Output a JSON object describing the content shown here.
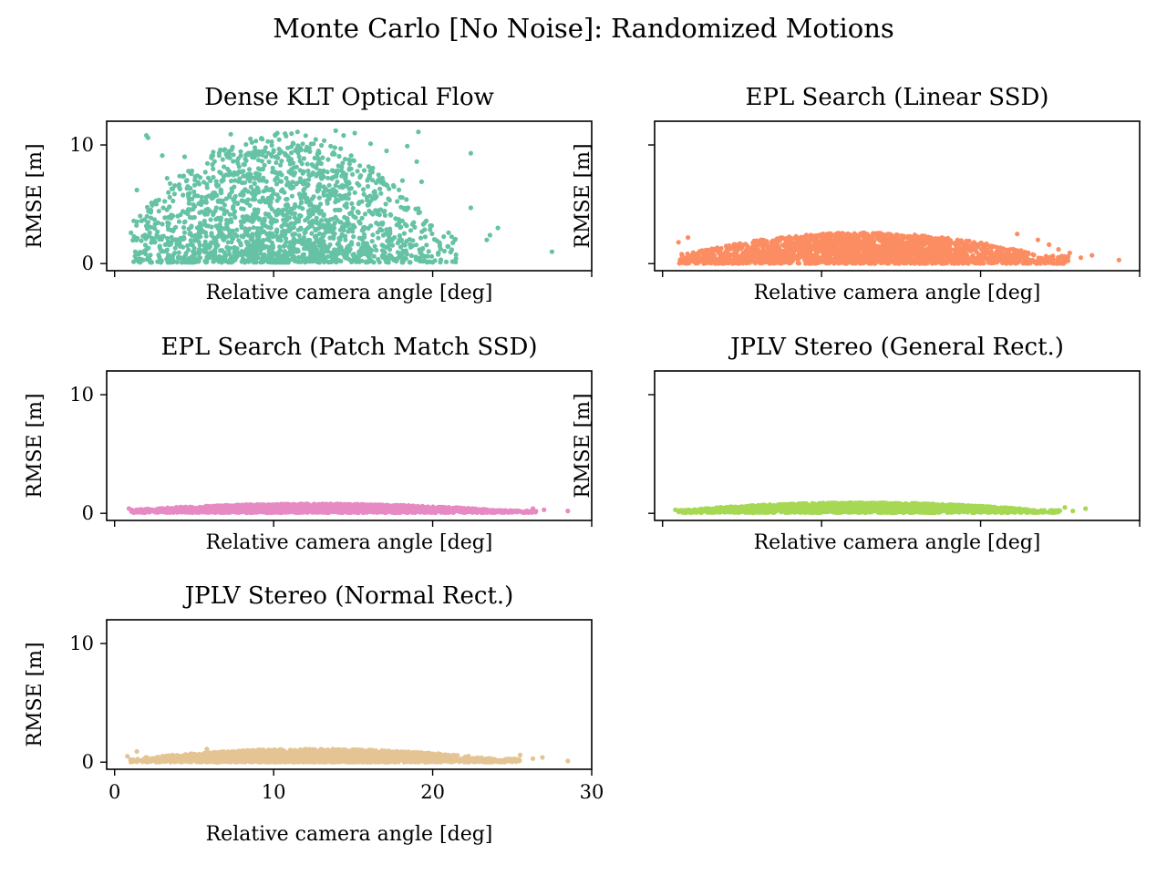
{
  "figure": {
    "suptitle": "Monte Carlo [No Noise]: Randomized Motions"
  },
  "chart_data": [
    {
      "type": "scatter",
      "title": "Dense KLT Optical Flow",
      "xlabel": "Relative camera angle [deg]",
      "ylabel": "RMSE [m]",
      "xlim": [
        -0.5,
        30
      ],
      "ylim": [
        -0.6,
        12
      ],
      "xticks": [
        "0",
        "10",
        "20",
        "30"
      ],
      "yticks": [
        "0",
        "10"
      ],
      "show_xticklabels": false,
      "show_yticklabels": true,
      "color": "#66c2a5",
      "points": [
        [
          1.2,
          3.6
        ],
        [
          2.0,
          10.8
        ],
        [
          2.1,
          10.6
        ],
        [
          1.4,
          6.2
        ],
        [
          2.6,
          5.3
        ],
        [
          3.0,
          9.1
        ],
        [
          4.4,
          9.0
        ],
        [
          4.6,
          6.5
        ],
        [
          6.2,
          9.4
        ],
        [
          7.3,
          10.9
        ],
        [
          8.4,
          9.3
        ],
        [
          10.1,
          10.8
        ],
        [
          11.5,
          11.1
        ],
        [
          12.5,
          10.1
        ],
        [
          13.9,
          11.2
        ],
        [
          14.4,
          10.8
        ],
        [
          15.1,
          11.0
        ],
        [
          16.1,
          10.1
        ],
        [
          17.1,
          9.5
        ],
        [
          18.4,
          9.9
        ],
        [
          19.0,
          8.6
        ],
        [
          19.1,
          11.1
        ],
        [
          18.1,
          7.0
        ],
        [
          19.3,
          6.9
        ],
        [
          19.6,
          3.6
        ],
        [
          20.4,
          1.8
        ],
        [
          21.0,
          2.6
        ],
        [
          22.4,
          4.7
        ],
        [
          23.6,
          2.4
        ],
        [
          24.1,
          3.0
        ],
        [
          22.4,
          9.3
        ],
        [
          27.5,
          1.0
        ],
        [
          23.4,
          2.0
        ],
        [
          21.4,
          2.0
        ],
        [
          2.5,
          2.1
        ],
        [
          1.3,
          1.0
        ],
        [
          1.8,
          0.3
        ],
        [
          5.0,
          0.4
        ],
        [
          3.3,
          7.2
        ]
      ],
      "cloud": {
        "xmin": 1.0,
        "xmax": 21.5,
        "center": 10.5,
        "spread": 5.2,
        "ymin": 0.1,
        "ymax": 11.0,
        "count": 1900,
        "skew": 1.6
      }
    },
    {
      "type": "scatter",
      "title": "EPL Search (Linear SSD)",
      "xlabel": "Relative camera angle [deg]",
      "ylabel": "RMSE [m]",
      "xlim": [
        -0.5,
        30
      ],
      "ylim": [
        -0.6,
        12
      ],
      "xticks": [
        "0",
        "10",
        "20",
        "30"
      ],
      "yticks": [
        "0",
        "10"
      ],
      "show_xticklabels": false,
      "show_yticklabels": false,
      "color": "#fc8d62",
      "points": [
        [
          1.0,
          1.8
        ],
        [
          1.2,
          0.8
        ],
        [
          1.6,
          2.2
        ],
        [
          25.2,
          0.4
        ],
        [
          25.6,
          0.9
        ],
        [
          26.3,
          0.5
        ],
        [
          27.0,
          0.7
        ],
        [
          28.7,
          0.3
        ],
        [
          24.3,
          1.6
        ],
        [
          24.9,
          1.2
        ],
        [
          23.6,
          2.0
        ],
        [
          22.3,
          2.5
        ]
      ],
      "cloud": {
        "xmin": 1.0,
        "xmax": 25.5,
        "center": 12.5,
        "spread": 6.5,
        "ymin": 0.0,
        "ymax": 2.6,
        "count": 2200,
        "skew": 1.2
      }
    },
    {
      "type": "scatter",
      "title": "EPL Search (Patch Match SSD)",
      "xlabel": "Relative camera angle [deg]",
      "ylabel": "RMSE [m]",
      "xlim": [
        -0.5,
        30
      ],
      "ylim": [
        -0.6,
        12
      ],
      "xticks": [
        "0",
        "10",
        "20",
        "30"
      ],
      "yticks": [
        "0",
        "10"
      ],
      "show_xticklabels": false,
      "show_yticklabels": true,
      "color": "#e78ac3",
      "points": [
        [
          0.9,
          0.4
        ],
        [
          27.0,
          0.3
        ],
        [
          28.5,
          0.2
        ],
        [
          26.3,
          0.4
        ]
      ],
      "cloud": {
        "xmin": 1.0,
        "xmax": 26.5,
        "center": 12.5,
        "spread": 6.8,
        "ymin": 0.05,
        "ymax": 0.8,
        "count": 2200,
        "skew": 1.0
      }
    },
    {
      "type": "scatter",
      "title": "JPLV Stereo (General Rect.)",
      "xlabel": "Relative camera angle [deg]",
      "ylabel": "RMSE [m]",
      "xlim": [
        -0.5,
        30
      ],
      "ylim": [
        -0.6,
        12
      ],
      "xticks": [
        "0",
        "10",
        "20",
        "30"
      ],
      "yticks": [
        "0",
        "10"
      ],
      "show_xticklabels": false,
      "show_yticklabels": false,
      "color": "#a6d854",
      "points": [
        [
          0.8,
          0.3
        ],
        [
          25.8,
          0.2
        ],
        [
          26.6,
          0.4
        ],
        [
          25.3,
          0.5
        ]
      ],
      "cloud": {
        "xmin": 1.0,
        "xmax": 25.0,
        "center": 12.5,
        "spread": 6.5,
        "ymin": 0.05,
        "ymax": 0.9,
        "count": 2200,
        "skew": 1.0
      }
    },
    {
      "type": "scatter",
      "title": "JPLV Stereo (Normal Rect.)",
      "xlabel": "Relative camera angle [deg]",
      "ylabel": "RMSE [m]",
      "xlim": [
        -0.5,
        30
      ],
      "ylim": [
        -0.6,
        12
      ],
      "xticks": [
        "0",
        "10",
        "20",
        "30"
      ],
      "yticks": [
        "0",
        "10"
      ],
      "show_xticklabels": true,
      "show_yticklabels": true,
      "color": "#e5c494",
      "points": [
        [
          0.8,
          0.5
        ],
        [
          1.4,
          0.9
        ],
        [
          26.3,
          0.3
        ],
        [
          26.9,
          0.4
        ],
        [
          28.5,
          0.1
        ],
        [
          25.5,
          0.6
        ],
        [
          5.8,
          1.1
        ],
        [
          12.0,
          1.1
        ]
      ],
      "cloud": {
        "xmin": 1.0,
        "xmax": 25.5,
        "center": 12.5,
        "spread": 6.5,
        "ymin": 0.0,
        "ymax": 1.1,
        "count": 2200,
        "skew": 1.3
      }
    }
  ]
}
